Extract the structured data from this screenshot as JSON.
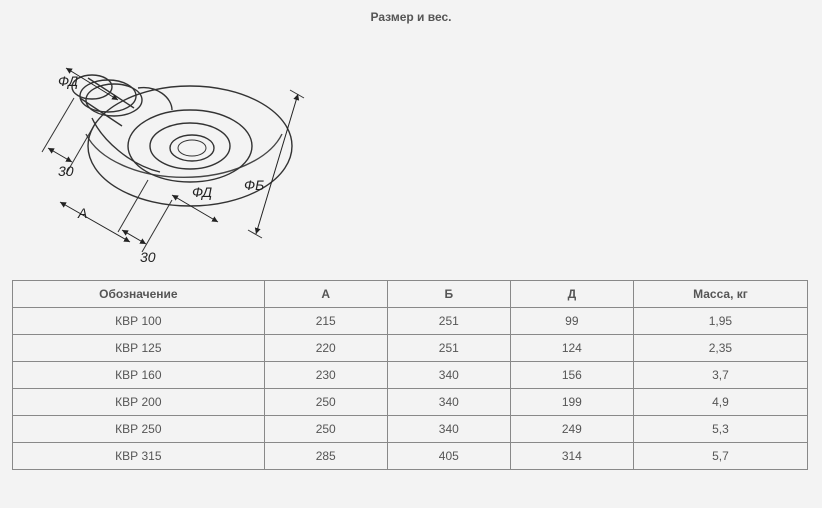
{
  "title": "Размер и вес.",
  "drawing": {
    "dim_labels": {
      "phi_d_top": "ФД",
      "phi_d_mid": "ФД",
      "phi_b": "ФБ",
      "thirty_upper": "30",
      "thirty_lower": "30",
      "a_label": "А"
    },
    "stroke_color": "#333333",
    "dim_color": "#222222",
    "background": "#f3f3f3"
  },
  "table": {
    "columns": [
      {
        "key": "name",
        "label": "Обозначение",
        "width_class": "col-name"
      },
      {
        "key": "a",
        "label": "А",
        "width_class": "col-a"
      },
      {
        "key": "b",
        "label": "Б",
        "width_class": "col-b"
      },
      {
        "key": "d",
        "label": "Д",
        "width_class": "col-d"
      },
      {
        "key": "mass",
        "label": "Масса, кг",
        "width_class": "col-m"
      }
    ],
    "rows": [
      {
        "name": "КВР 100",
        "a": "215",
        "b": "251",
        "d": "99",
        "mass": "1,95"
      },
      {
        "name": "КВР 125",
        "a": "220",
        "b": "251",
        "d": "124",
        "mass": "2,35"
      },
      {
        "name": "КВР 160",
        "a": "230",
        "b": "340",
        "d": "156",
        "mass": "3,7"
      },
      {
        "name": "КВР 200",
        "a": "250",
        "b": "340",
        "d": "199",
        "mass": "4,9"
      },
      {
        "name": "КВР 250",
        "a": "250",
        "b": "340",
        "d": "249",
        "mass": "5,3"
      },
      {
        "name": "КВР 315",
        "a": "285",
        "b": "405",
        "d": "314",
        "mass": "5,7"
      }
    ],
    "border_color": "#888888",
    "text_color": "#555555",
    "font_size_pt": 9
  }
}
